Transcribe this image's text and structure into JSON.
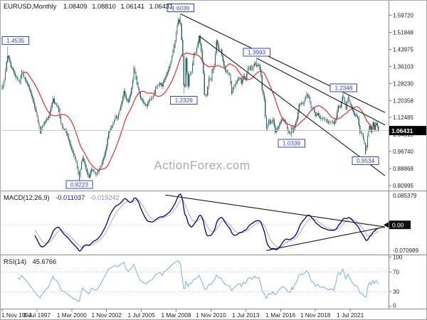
{
  "main_header": {
    "symbol": "EURUSD,Monthly",
    "open": "1.08409",
    "high": "1.08810",
    "low": "1.06141",
    "close": "1.06431"
  },
  "watermark": "ActionForex.com",
  "macd_header": {
    "label": "MACD(12,26,9)",
    "value_macd": "-0.011037",
    "value_signal": "-0.019242"
  },
  "rsi_header": {
    "label": "RSI(14)",
    "value": "45.6766"
  },
  "colors": {
    "candle": "#336868",
    "candle_wick": "#2e5b5b",
    "ma": "#e03030",
    "macd": "#00007a",
    "macd_signal": "#b0b0d8",
    "rsi": "#85b4de",
    "rsi_level": "#b9c2d8",
    "label_box": "#3646c3",
    "trendline": "#1a1a1a",
    "bid_line": "#c9c9c9",
    "price_tag_bg": "#000000",
    "axis_text": "#222222"
  },
  "chart_data": [
    {
      "type": "candlestick",
      "name": "EURUSD Monthly",
      "months_total": 347,
      "x_ticks": [
        [
          "1 Nov 1994",
          0
        ],
        [
          "1 Jul 1997",
          32
        ],
        [
          "1 Mar 2000",
          64
        ],
        [
          "1 Nov 2002",
          96
        ],
        [
          "1 Jul 2005",
          128
        ],
        [
          "1 Mar 2008",
          160
        ],
        [
          "1 Nov 2010",
          192
        ],
        [
          "1 Jul 2013",
          224
        ],
        [
          "1 Mar 2016",
          256
        ],
        [
          "1 Nov 2018",
          288
        ],
        [
          "1 Jul 2021",
          320
        ]
      ],
      "y_axis_labels": [
        1.5972,
        1.51848,
        1.43975,
        1.36103,
        1.2823,
        1.20358,
        1.12485,
        1.04613,
        0.9674,
        0.88868,
        0.80995
      ],
      "y_range": [
        0.79,
        1.652
      ],
      "current_price": 1.06431,
      "last_bar": {
        "open": 1.08409,
        "high": 1.0881,
        "low": 1.06141,
        "close": 1.06431
      },
      "ma_period": 20,
      "swing_labels": [
        {
          "m": 5,
          "text": "1.4535",
          "side": "above"
        },
        {
          "m": 71,
          "text": "0.8223",
          "side": "below"
        },
        {
          "m": 164,
          "text": "1.6039",
          "side": "above"
        },
        {
          "m": 167,
          "text": "1.2329",
          "side": "below"
        },
        {
          "m": 234,
          "text": "1.3993",
          "side": "above"
        },
        {
          "m": 266,
          "text": "1.0339",
          "side": "below"
        },
        {
          "m": 314,
          "text": "1.2348",
          "side": "above"
        },
        {
          "m": 334,
          "text": "0.9534",
          "side": "below"
        }
      ],
      "trendlines": [
        {
          "from": [
            164,
            1.604
          ],
          "to": [
            352,
            1.148
          ]
        },
        {
          "from": [
            234,
            1.3993
          ],
          "to": [
            352,
            1.09
          ]
        },
        {
          "from": [
            181,
            1.503
          ],
          "to": [
            352,
            0.855
          ]
        }
      ],
      "closes_anchors": [
        [
          0,
          1.26
        ],
        [
          2,
          1.3
        ],
        [
          4,
          1.383
        ],
        [
          5,
          1.41
        ],
        [
          6,
          1.4
        ],
        [
          8,
          1.36
        ],
        [
          10,
          1.345
        ],
        [
          12,
          1.317
        ],
        [
          14,
          1.302
        ],
        [
          16,
          1.29
        ],
        [
          18,
          1.333
        ],
        [
          20,
          1.31
        ],
        [
          22,
          1.291
        ],
        [
          24,
          1.27
        ],
        [
          26,
          1.243
        ],
        [
          28,
          1.212
        ],
        [
          30,
          1.172
        ],
        [
          32,
          1.131
        ],
        [
          34,
          1.082
        ],
        [
          35,
          1.062
        ],
        [
          37,
          1.086
        ],
        [
          39,
          1.102
        ],
        [
          41,
          1.117
        ],
        [
          43,
          1.132
        ],
        [
          45,
          1.172
        ],
        [
          47,
          1.213
        ],
        [
          48,
          1.192
        ],
        [
          50,
          1.181
        ],
        [
          52,
          1.161
        ],
        [
          54,
          1.097
        ],
        [
          56,
          1.071
        ],
        [
          58,
          1.066
        ],
        [
          60,
          1.041
        ],
        [
          62,
          1.006
        ],
        [
          64,
          0.976
        ],
        [
          66,
          0.946
        ],
        [
          68,
          0.921
        ],
        [
          70,
          0.866
        ],
        [
          71,
          0.852
        ],
        [
          73,
          0.921
        ],
        [
          74,
          0.937
        ],
        [
          76,
          0.906
        ],
        [
          78,
          0.871
        ],
        [
          80,
          0.848
        ],
        [
          82,
          0.886
        ],
        [
          84,
          0.876
        ],
        [
          86,
          0.862
        ],
        [
          88,
          0.873
        ],
        [
          90,
          0.893
        ],
        [
          92,
          0.921
        ],
        [
          94,
          0.951
        ],
        [
          96,
          0.996
        ],
        [
          98,
          1.058
        ],
        [
          100,
          1.077
        ],
        [
          102,
          1.099
        ],
        [
          104,
          1.128
        ],
        [
          106,
          1.121
        ],
        [
          108,
          1.16
        ],
        [
          110,
          1.199
        ],
        [
          112,
          1.248
        ],
        [
          114,
          1.211
        ],
        [
          116,
          1.197
        ],
        [
          118,
          1.232
        ],
        [
          120,
          1.297
        ],
        [
          121,
          1.354
        ],
        [
          123,
          1.311
        ],
        [
          125,
          1.261
        ],
        [
          127,
          1.216
        ],
        [
          129,
          1.201
        ],
        [
          131,
          1.186
        ],
        [
          133,
          1.178
        ],
        [
          135,
          1.204
        ],
        [
          137,
          1.211
        ],
        [
          139,
          1.226
        ],
        [
          141,
          1.262
        ],
        [
          143,
          1.271
        ],
        [
          145,
          1.283
        ],
        [
          147,
          1.268
        ],
        [
          149,
          1.302
        ],
        [
          151,
          1.323
        ],
        [
          153,
          1.348
        ],
        [
          155,
          1.383
        ],
        [
          157,
          1.435
        ],
        [
          159,
          1.478
        ],
        [
          161,
          1.555
        ],
        [
          162,
          1.578
        ],
        [
          164,
          1.558
        ],
        [
          166,
          1.409
        ],
        [
          167,
          1.273
        ],
        [
          168,
          1.269
        ],
        [
          169,
          1.398
        ],
        [
          171,
          1.268
        ],
        [
          172,
          1.323
        ],
        [
          174,
          1.334
        ],
        [
          176,
          1.414
        ],
        [
          178,
          1.427
        ],
        [
          180,
          1.472
        ],
        [
          181,
          1.501
        ],
        [
          183,
          1.432
        ],
        [
          185,
          1.33
        ],
        [
          186,
          1.231
        ],
        [
          188,
          1.227
        ],
        [
          190,
          1.307
        ],
        [
          192,
          1.298
        ],
        [
          193,
          1.338
        ],
        [
          195,
          1.365
        ],
        [
          197,
          1.481
        ],
        [
          199,
          1.44
        ],
        [
          201,
          1.439
        ],
        [
          203,
          1.386
        ],
        [
          205,
          1.344
        ],
        [
          207,
          1.333
        ],
        [
          209,
          1.323
        ],
        [
          211,
          1.244
        ],
        [
          213,
          1.266
        ],
        [
          215,
          1.286
        ],
        [
          217,
          1.308
        ],
        [
          219,
          1.306
        ],
        [
          220,
          1.282
        ],
        [
          222,
          1.317
        ],
        [
          224,
          1.301
        ],
        [
          226,
          1.353
        ],
        [
          228,
          1.358
        ],
        [
          230,
          1.349
        ],
        [
          232,
          1.377
        ],
        [
          234,
          1.363
        ],
        [
          236,
          1.369
        ],
        [
          238,
          1.319
        ],
        [
          239,
          1.252
        ],
        [
          241,
          1.21
        ],
        [
          242,
          1.129
        ],
        [
          243,
          1.073
        ],
        [
          245,
          1.113
        ],
        [
          247,
          1.099
        ],
        [
          249,
          1.118
        ],
        [
          251,
          1.056
        ],
        [
          253,
          1.074
        ],
        [
          255,
          1.096
        ],
        [
          257,
          1.115
        ],
        [
          259,
          1.114
        ],
        [
          261,
          1.096
        ],
        [
          263,
          1.054
        ],
        [
          265,
          1.052
        ],
        [
          266,
          1.08
        ],
        [
          267,
          1.058
        ],
        [
          269,
          1.089
        ],
        [
          271,
          1.118
        ],
        [
          273,
          1.184
        ],
        [
          275,
          1.191
        ],
        [
          277,
          1.19
        ],
        [
          279,
          1.221
        ],
        [
          280,
          1.233
        ],
        [
          282,
          1.22
        ],
        [
          284,
          1.169
        ],
        [
          286,
          1.166
        ],
        [
          288,
          1.132
        ],
        [
          290,
          1.145
        ],
        [
          292,
          1.122
        ],
        [
          294,
          1.122
        ],
        [
          296,
          1.118
        ],
        [
          298,
          1.108
        ],
        [
          300,
          1.102
        ],
        [
          302,
          1.103
        ],
        [
          304,
          1.103
        ],
        [
          305,
          1.096
        ],
        [
          307,
          1.123
        ],
        [
          309,
          1.178
        ],
        [
          311,
          1.172
        ],
        [
          313,
          1.222
        ],
        [
          314,
          1.214
        ],
        [
          316,
          1.173
        ],
        [
          318,
          1.219
        ],
        [
          320,
          1.187
        ],
        [
          322,
          1.158
        ],
        [
          324,
          1.134
        ],
        [
          325,
          1.137
        ],
        [
          327,
          1.122
        ],
        [
          329,
          1.055
        ],
        [
          331,
          1.048
        ],
        [
          333,
          1.005
        ],
        [
          334,
          0.98
        ],
        [
          335,
          0.988
        ],
        [
          336,
          1.04
        ],
        [
          337,
          1.071
        ],
        [
          338,
          1.086
        ],
        [
          339,
          1.058
        ],
        [
          340,
          1.084
        ],
        [
          341,
          1.102
        ],
        [
          342,
          1.069
        ],
        [
          343,
          1.091
        ],
        [
          344,
          1.1
        ],
        [
          345,
          1.084
        ],
        [
          346,
          1.06431
        ]
      ]
    },
    {
      "type": "line",
      "name": "MACD(12,26,9)",
      "params": {
        "fast": 12,
        "slow": 26,
        "signal": 9
      },
      "y_axis_labels": [
        0.085379,
        -0.070989
      ],
      "zero_label": "0.00",
      "y_range": [
        -0.070989,
        0.085379
      ],
      "current": {
        "macd": -0.011037,
        "signal": -0.019242
      },
      "trendlines": [
        {
          "from": [
            150,
            0.0806
          ],
          "to": [
            352,
            -0.0055
          ]
        },
        {
          "from": [
            243,
            -0.069
          ],
          "to": [
            352,
            -0.0055
          ]
        }
      ]
    },
    {
      "type": "line",
      "name": "RSI(14)",
      "period": 14,
      "y_axis_labels": [
        100,
        70,
        30,
        0
      ],
      "levels": [
        70,
        30
      ],
      "y_range": [
        0,
        100
      ],
      "current": 45.6766
    }
  ]
}
